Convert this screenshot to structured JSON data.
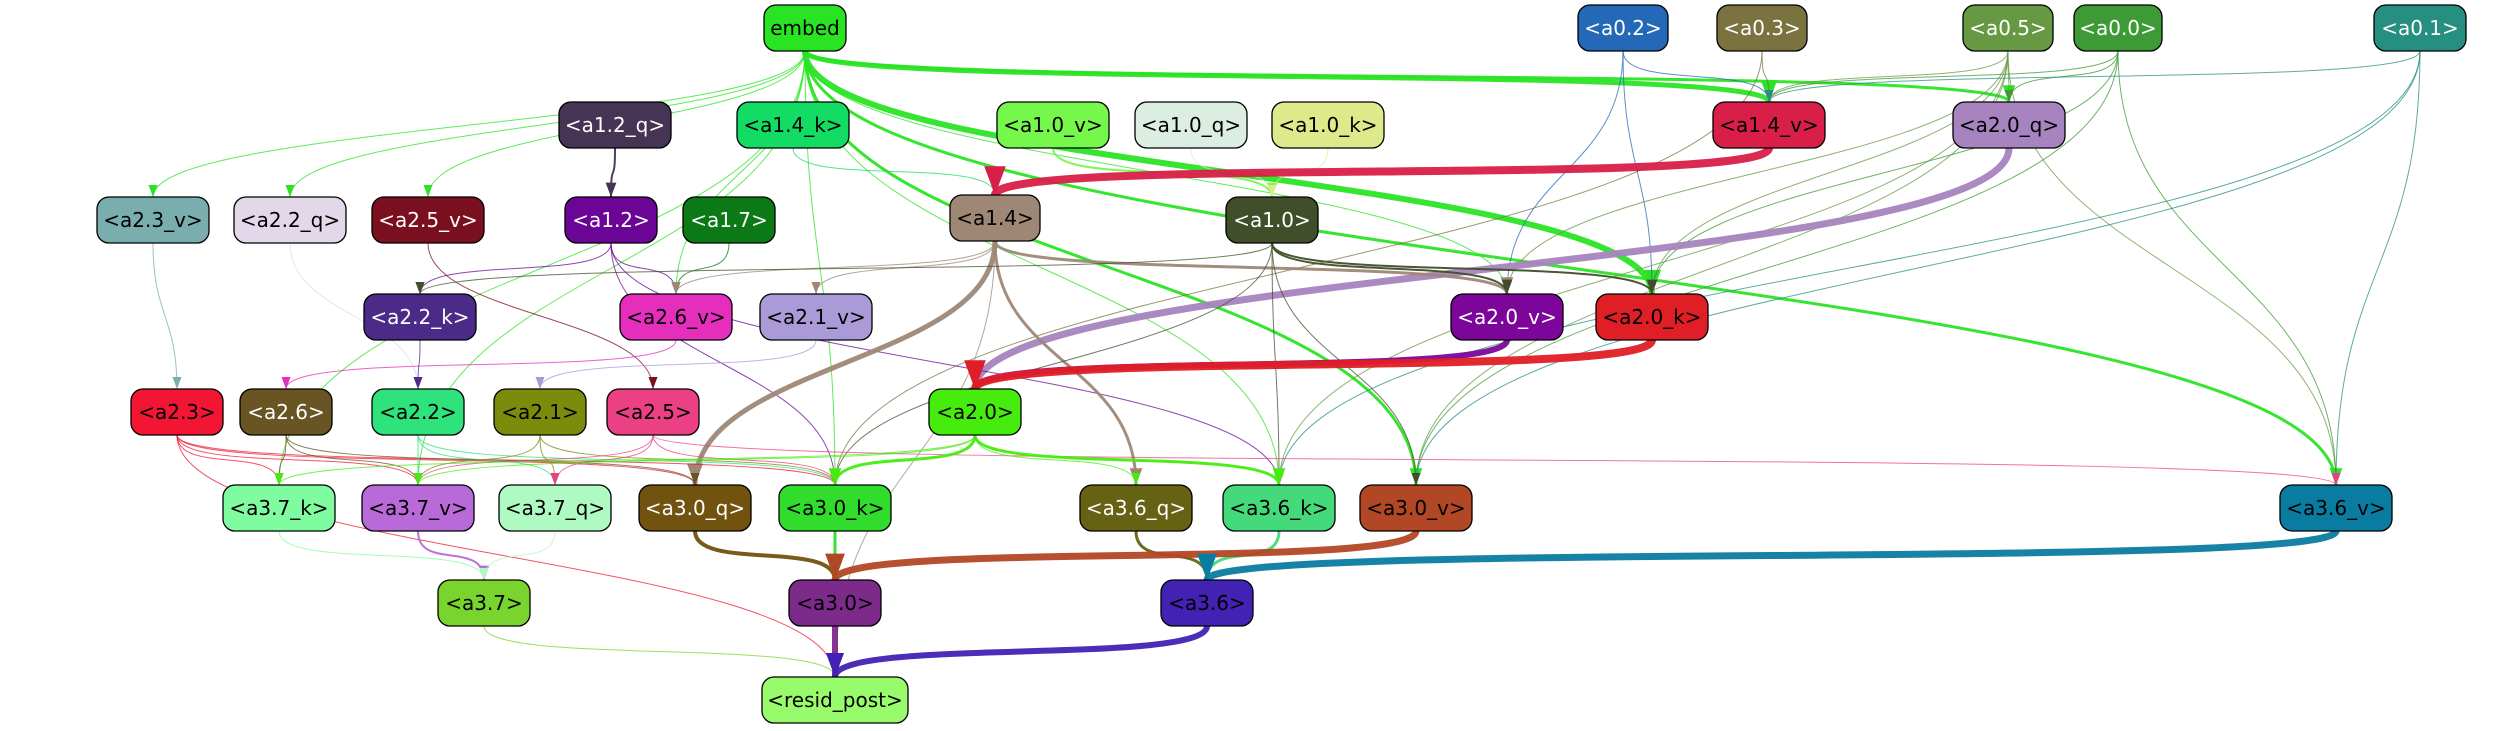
{
  "nodes": [
    {
      "id": "embed",
      "label": "embed",
      "fill": "#2ae424",
      "text": "#000000"
    },
    {
      "id": "a0_2",
      "label": "<a0.2>",
      "fill": "#2469b7",
      "text": "#ffffff"
    },
    {
      "id": "a0_3",
      "label": "<a0.3>",
      "fill": "#7a723f",
      "text": "#ffffff"
    },
    {
      "id": "a0_5",
      "label": "<a0.5>",
      "fill": "#679843",
      "text": "#ffffff"
    },
    {
      "id": "a0_0",
      "label": "<a0.0>",
      "fill": "#3e9a34",
      "text": "#ffffff"
    },
    {
      "id": "a0_1",
      "label": "<a0.1>",
      "fill": "#278f82",
      "text": "#ffffff"
    },
    {
      "id": "a1_2_q",
      "label": "<a1.2_q>",
      "fill": "#463454",
      "text": "#ffffff"
    },
    {
      "id": "a1_4_k",
      "label": "<a1.4_k>",
      "fill": "#12dc64",
      "text": "#000000"
    },
    {
      "id": "a1_0_v",
      "label": "<a1.0_v>",
      "fill": "#76f74c",
      "text": "#000000"
    },
    {
      "id": "a1_0_q",
      "label": "<a1.0_q>",
      "fill": "#dcede2",
      "text": "#000000"
    },
    {
      "id": "a1_0_k",
      "label": "<a1.0_k>",
      "fill": "#dee98c",
      "text": "#000000"
    },
    {
      "id": "a1_4_v",
      "label": "<a1.4_v>",
      "fill": "#d91f48",
      "text": "#000000"
    },
    {
      "id": "a2_0_q",
      "label": "<a2.0_q>",
      "fill": "#a784bf",
      "text": "#000000"
    },
    {
      "id": "a2_3_v",
      "label": "<a2.3_v>",
      "fill": "#7aaeae",
      "text": "#000000"
    },
    {
      "id": "a2_2_q",
      "label": "<a2.2_q>",
      "fill": "#e3d8e9",
      "text": "#000000"
    },
    {
      "id": "a2_5_v",
      "label": "<a2.5_v>",
      "fill": "#7a0f1f",
      "text": "#ffffff"
    },
    {
      "id": "a1_2",
      "label": "<a1.2>",
      "fill": "#6a0595",
      "text": "#ffffff"
    },
    {
      "id": "a1_7",
      "label": "<a1.7>",
      "fill": "#0a7916",
      "text": "#ffffff"
    },
    {
      "id": "a1_4",
      "label": "<a1.4>",
      "fill": "#9e8775",
      "text": "#000000"
    },
    {
      "id": "a1_0",
      "label": "<a1.0>",
      "fill": "#404e29",
      "text": "#ffffff"
    },
    {
      "id": "a2_2_k",
      "label": "<a2.2_k>",
      "fill": "#4c2b88",
      "text": "#ffffff"
    },
    {
      "id": "a2_6_v",
      "label": "<a2.6_v>",
      "fill": "#e62ebd",
      "text": "#000000"
    },
    {
      "id": "a2_1_v",
      "label": "<a2.1_v>",
      "fill": "#ab9ad8",
      "text": "#000000"
    },
    {
      "id": "a2_0_v",
      "label": "<a2.0_v>",
      "fill": "#7d069a",
      "text": "#ffffff"
    },
    {
      "id": "a2_0_k",
      "label": "<a2.0_k>",
      "fill": "#e01e25",
      "text": "#000000"
    },
    {
      "id": "a2_3",
      "label": "<a2.3>",
      "fill": "#f21534",
      "text": "#000000"
    },
    {
      "id": "a2_6",
      "label": "<a2.6>",
      "fill": "#695424",
      "text": "#ffffff"
    },
    {
      "id": "a2_2",
      "label": "<a2.2>",
      "fill": "#2ee27c",
      "text": "#000000"
    },
    {
      "id": "a2_1",
      "label": "<a2.1>",
      "fill": "#7b8b0c",
      "text": "#000000"
    },
    {
      "id": "a2_5",
      "label": "<a2.5>",
      "fill": "#ec4084",
      "text": "#000000"
    },
    {
      "id": "a2_0",
      "label": "<a2.0>",
      "fill": "#46ec0e",
      "text": "#000000"
    },
    {
      "id": "a3_7_k",
      "label": "<a3.7_k>",
      "fill": "#80fca0",
      "text": "#000000"
    },
    {
      "id": "a3_7_v",
      "label": "<a3.7_v>",
      "fill": "#b96ad9",
      "text": "#000000"
    },
    {
      "id": "a3_7_q",
      "label": "<a3.7_q>",
      "fill": "#aefac2",
      "text": "#000000"
    },
    {
      "id": "a3_0_q",
      "label": "<a3.0_q>",
      "fill": "#71520e",
      "text": "#ffffff"
    },
    {
      "id": "a3_0_k",
      "label": "<a3.0_k>",
      "fill": "#32dc2c",
      "text": "#000000"
    },
    {
      "id": "a3_6_q",
      "label": "<a3.6_q>",
      "fill": "#666214",
      "text": "#ffffff"
    },
    {
      "id": "a3_6_k",
      "label": "<a3.6_k>",
      "fill": "#44d97a",
      "text": "#000000"
    },
    {
      "id": "a3_0_v",
      "label": "<a3.0_v>",
      "fill": "#b24726",
      "text": "#000000"
    },
    {
      "id": "a3_6_v",
      "label": "<a3.6_v>",
      "fill": "#0a7ca1",
      "text": "#000000"
    },
    {
      "id": "a3_7",
      "label": "<a3.7>",
      "fill": "#79d42e",
      "text": "#000000"
    },
    {
      "id": "a3_0",
      "label": "<a3.0>",
      "fill": "#7d2b8b",
      "text": "#000000"
    },
    {
      "id": "a3_6",
      "label": "<a3.6>",
      "fill": "#4122b3",
      "text": "#000000"
    },
    {
      "id": "resid_post",
      "label": "<resid_post>",
      "fill": "#97fb6b",
      "text": "#000000"
    }
  ],
  "edges": [
    {
      "from": "embed",
      "to": "a1_4_v",
      "color": "#2ae424",
      "weight": 5
    },
    {
      "from": "embed",
      "to": "a2_0_k",
      "color": "#2ae424",
      "weight": 6
    },
    {
      "from": "embed",
      "to": "a2_0_q",
      "color": "#2ae424",
      "weight": 3
    },
    {
      "from": "embed",
      "to": "a3_6_v",
      "color": "#2ae424",
      "weight": 3
    },
    {
      "from": "embed",
      "to": "a3_0_v",
      "color": "#2ae424",
      "weight": 3
    },
    {
      "from": "embed",
      "to": "a2_0_v",
      "color": "#2ae424",
      "weight": 1
    },
    {
      "from": "embed",
      "to": "a3_6_k",
      "color": "#2ae424",
      "weight": 1
    },
    {
      "from": "embed",
      "to": "a3_0_k",
      "color": "#2ae424",
      "weight": 1
    },
    {
      "from": "embed",
      "to": "a2_3_v",
      "color": "#2ae424",
      "weight": 1
    },
    {
      "from": "embed",
      "to": "a2_2_q",
      "color": "#2ae424",
      "weight": 1
    },
    {
      "from": "embed",
      "to": "a2_5_v",
      "color": "#2ae424",
      "weight": 1
    },
    {
      "from": "embed",
      "to": "a3_7_k",
      "color": "#2ae424",
      "weight": 1
    },
    {
      "from": "embed",
      "to": "a3_7_v",
      "color": "#2ae424",
      "weight": 1
    },
    {
      "from": "embed",
      "to": "a2_6_v",
      "color": "#2ae424",
      "weight": 1
    },
    {
      "from": "a0_2",
      "to": "a1_4_v",
      "color": "#2469b7",
      "weight": 1
    },
    {
      "from": "a0_2",
      "to": "a2_0_k",
      "color": "#2469b7",
      "weight": 1
    },
    {
      "from": "a0_2",
      "to": "a2_0_v",
      "color": "#2469b7",
      "weight": 1
    },
    {
      "from": "a0_3",
      "to": "a1_4_v",
      "color": "#7a723f",
      "weight": 1
    },
    {
      "from": "a0_3",
      "to": "a3_0_k",
      "color": "#7a723f",
      "weight": 1
    },
    {
      "from": "a0_5",
      "to": "a1_4_v",
      "color": "#679843",
      "weight": 1
    },
    {
      "from": "a0_5",
      "to": "a2_0_q",
      "color": "#679843",
      "weight": 1
    },
    {
      "from": "a0_5",
      "to": "a2_0_k",
      "color": "#679843",
      "weight": 1
    },
    {
      "from": "a0_5",
      "to": "a3_6_v",
      "color": "#679843",
      "weight": 1
    },
    {
      "from": "a0_5",
      "to": "a3_0_v",
      "color": "#679843",
      "weight": 1
    },
    {
      "from": "a0_5",
      "to": "a3_6_k",
      "color": "#679843",
      "weight": 1
    },
    {
      "from": "a0_5",
      "to": "a2_0_v",
      "color": "#679843",
      "weight": 1
    },
    {
      "from": "a0_0",
      "to": "a1_4_v",
      "color": "#3e9a34",
      "weight": 1
    },
    {
      "from": "a0_0",
      "to": "a2_0_q",
      "color": "#3e9a34",
      "weight": 1
    },
    {
      "from": "a0_0",
      "to": "a2_0_k",
      "color": "#3e9a34",
      "weight": 1
    },
    {
      "from": "a0_0",
      "to": "a3_6_v",
      "color": "#3e9a34",
      "weight": 1
    },
    {
      "from": "a0_0",
      "to": "a3_0_v",
      "color": "#3e9a34",
      "weight": 1
    },
    {
      "from": "a0_1",
      "to": "a1_4_v",
      "color": "#278f82",
      "weight": 1
    },
    {
      "from": "a0_1",
      "to": "a3_6_v",
      "color": "#278f82",
      "weight": 1
    },
    {
      "from": "a0_1",
      "to": "a3_0_v",
      "color": "#278f82",
      "weight": 1
    },
    {
      "from": "a0_1",
      "to": "a3_6_k",
      "color": "#278f82",
      "weight": 1
    },
    {
      "from": "a1_2_q",
      "to": "a1_2",
      "color": "#463454",
      "weight": 2
    },
    {
      "from": "a1_4_k",
      "to": "a1_4",
      "color": "#12dc64",
      "weight": 1
    },
    {
      "from": "a1_0_v",
      "to": "a1_0",
      "color": "#76f74c",
      "weight": 2
    },
    {
      "from": "a1_0_q",
      "to": "a1_0",
      "color": "#dcede2",
      "weight": 1
    },
    {
      "from": "a1_0_k",
      "to": "a1_0",
      "color": "#dee98c",
      "weight": 1
    },
    {
      "from": "a1_4_v",
      "to": "a1_4",
      "color": "#d91f48",
      "weight": 8
    },
    {
      "from": "a2_0_q",
      "to": "a2_0",
      "color": "#a784bf",
      "weight": 7
    },
    {
      "from": "a2_3_v",
      "to": "a2_3",
      "color": "#7aaeae",
      "weight": 1
    },
    {
      "from": "a2_2_q",
      "to": "a2_2",
      "color": "#e3d8e9",
      "weight": 1
    },
    {
      "from": "a2_5_v",
      "to": "a2_5",
      "color": "#7a0f1f",
      "weight": 1
    },
    {
      "from": "a1_2",
      "to": "a2_2_k",
      "color": "#6a0595",
      "weight": 1
    },
    {
      "from": "a1_2",
      "to": "a2_6_v",
      "color": "#6a0595",
      "weight": 1
    },
    {
      "from": "a1_2",
      "to": "a3_0_k",
      "color": "#6a0595",
      "weight": 1
    },
    {
      "from": "a1_2",
      "to": "a3_6_k",
      "color": "#6a0595",
      "weight": 1
    },
    {
      "from": "a1_7",
      "to": "a2_6_v",
      "color": "#0a7916",
      "weight": 1
    },
    {
      "from": "a1_4",
      "to": "a2_0_v",
      "color": "#9e8775",
      "weight": 3
    },
    {
      "from": "a1_4",
      "to": "a3_0_q",
      "color": "#9e8775",
      "weight": 5
    },
    {
      "from": "a1_4",
      "to": "a3_6_q",
      "color": "#9e8775",
      "weight": 3
    },
    {
      "from": "a1_4",
      "to": "a2_1_v",
      "color": "#9e8775",
      "weight": 1
    },
    {
      "from": "a1_4",
      "to": "a2_6_v",
      "color": "#9e8775",
      "weight": 1
    },
    {
      "from": "a1_4",
      "to": "resid_post",
      "color": "#9e8775",
      "weight": 1
    },
    {
      "from": "a1_0",
      "to": "a2_0_v",
      "color": "#404e29",
      "weight": 2
    },
    {
      "from": "a1_0",
      "to": "a2_0_k",
      "color": "#404e29",
      "weight": 2
    },
    {
      "from": "a1_0",
      "to": "a3_0_v",
      "color": "#404e29",
      "weight": 1
    },
    {
      "from": "a1_0",
      "to": "a3_6_k",
      "color": "#404e29",
      "weight": 1
    },
    {
      "from": "a1_0",
      "to": "a2_2_k",
      "color": "#404e29",
      "weight": 1
    },
    {
      "from": "a1_0",
      "to": "a3_0_k",
      "color": "#404e29",
      "weight": 1
    },
    {
      "from": "a2_2_k",
      "to": "a2_2",
      "color": "#4c2b88",
      "weight": 1
    },
    {
      "from": "a2_6_v",
      "to": "a2_6",
      "color": "#e62ebd",
      "weight": 1
    },
    {
      "from": "a2_1_v",
      "to": "a2_1",
      "color": "#ab9ad8",
      "weight": 1
    },
    {
      "from": "a2_0_v",
      "to": "a2_0",
      "color": "#7d069a",
      "weight": 6
    },
    {
      "from": "a2_0_k",
      "to": "a2_0",
      "color": "#e01e25",
      "weight": 8
    },
    {
      "from": "a2_3",
      "to": "a3_7_k",
      "color": "#f21534",
      "weight": 1
    },
    {
      "from": "a2_3",
      "to": "a3_7_v",
      "color": "#f21534",
      "weight": 1
    },
    {
      "from": "a2_3",
      "to": "a3_0_q",
      "color": "#f21534",
      "weight": 1
    },
    {
      "from": "a2_3",
      "to": "a3_0_k",
      "color": "#f21534",
      "weight": 1
    },
    {
      "from": "a2_3",
      "to": "resid_post",
      "color": "#f21534",
      "weight": 1
    },
    {
      "from": "a2_6",
      "to": "a3_7_k",
      "color": "#695424",
      "weight": 1
    },
    {
      "from": "a2_6",
      "to": "a3_7_v",
      "color": "#695424",
      "weight": 1
    },
    {
      "from": "a2_6",
      "to": "a3_0_q",
      "color": "#695424",
      "weight": 1
    },
    {
      "from": "a2_2",
      "to": "a3_7_v",
      "color": "#2ee27c",
      "weight": 1
    },
    {
      "from": "a2_2",
      "to": "a3_7_q",
      "color": "#2ee27c",
      "weight": 1
    },
    {
      "from": "a2_2",
      "to": "a3_0_k",
      "color": "#2ee27c",
      "weight": 1
    },
    {
      "from": "a2_1",
      "to": "a3_7_v",
      "color": "#7b8b0c",
      "weight": 1
    },
    {
      "from": "a2_1",
      "to": "a3_7_q",
      "color": "#7b8b0c",
      "weight": 1
    },
    {
      "from": "a2_1",
      "to": "a3_0_k",
      "color": "#7b8b0c",
      "weight": 1
    },
    {
      "from": "a2_5",
      "to": "a3_7_v",
      "color": "#ec4084",
      "weight": 1
    },
    {
      "from": "a2_5",
      "to": "a3_7_q",
      "color": "#ec4084",
      "weight": 1
    },
    {
      "from": "a2_5",
      "to": "a3_6_v",
      "color": "#ec4084",
      "weight": 1
    },
    {
      "from": "a2_5",
      "to": "a3_0_k",
      "color": "#ec4084",
      "weight": 1
    },
    {
      "from": "a2_0",
      "to": "a3_0_k",
      "color": "#46ec0e",
      "weight": 3
    },
    {
      "from": "a2_0",
      "to": "a3_6_k",
      "color": "#46ec0e",
      "weight": 3
    },
    {
      "from": "a2_0",
      "to": "a3_6_q",
      "color": "#46ec0e",
      "weight": 1
    },
    {
      "from": "a2_0",
      "to": "a3_7_k",
      "color": "#46ec0e",
      "weight": 1
    },
    {
      "from": "a2_0",
      "to": "a3_7_v",
      "color": "#46ec0e",
      "weight": 1
    },
    {
      "from": "a3_7_k",
      "to": "a3_7",
      "color": "#80fca0",
      "weight": 1
    },
    {
      "from": "a3_7_v",
      "to": "a3_7",
      "color": "#b96ad9",
      "weight": 2
    },
    {
      "from": "a3_7_q",
      "to": "a3_7",
      "color": "#aefac2",
      "weight": 1
    },
    {
      "from": "a3_0_q",
      "to": "a3_0",
      "color": "#71520e",
      "weight": 4
    },
    {
      "from": "a3_0_k",
      "to": "a3_0",
      "color": "#32dc2c",
      "weight": 3
    },
    {
      "from": "a3_6_q",
      "to": "a3_6",
      "color": "#666214",
      "weight": 3
    },
    {
      "from": "a3_6_k",
      "to": "a3_6",
      "color": "#44d97a",
      "weight": 3
    },
    {
      "from": "a3_0_v",
      "to": "a3_0",
      "color": "#b24726",
      "weight": 7
    },
    {
      "from": "a3_6_v",
      "to": "a3_6",
      "color": "#0a7ca1",
      "weight": 7
    },
    {
      "from": "a3_7",
      "to": "resid_post",
      "color": "#79d42e",
      "weight": 1
    },
    {
      "from": "a3_0",
      "to": "resid_post",
      "color": "#7d2b8b",
      "weight": 6
    },
    {
      "from": "a3_6",
      "to": "resid_post",
      "color": "#4122b3",
      "weight": 6
    }
  ]
}
